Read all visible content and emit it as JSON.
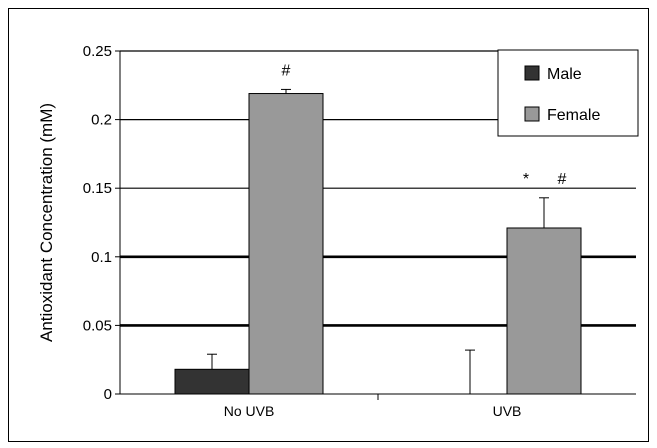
{
  "chart_data": {
    "type": "bar",
    "title": "",
    "xlabel": "",
    "ylabel": "Antioxidant Concentration (mM)",
    "categories": [
      "No UVB",
      "UVB"
    ],
    "ylim": [
      0,
      0.25
    ],
    "y_ticks": [
      "0",
      "0.05",
      "0.1",
      "0.15",
      "0.2",
      "0.25"
    ],
    "grid": true,
    "legend_position": "top-right",
    "series": [
      {
        "name": "Male",
        "color": "#333333",
        "values": [
          0.018,
          0
        ],
        "errors": [
          0.011,
          0.032
        ]
      },
      {
        "name": "Female",
        "color": "#999999",
        "values": [
          0.219,
          0.121
        ],
        "errors": [
          0.003,
          0.022
        ]
      }
    ],
    "annotations": [
      {
        "category": "No UVB",
        "series": "Female",
        "text": "#"
      },
      {
        "category": "UVB",
        "series": "Female",
        "text": "*"
      },
      {
        "category": "UVB",
        "series": "Female",
        "text": "#"
      }
    ]
  }
}
